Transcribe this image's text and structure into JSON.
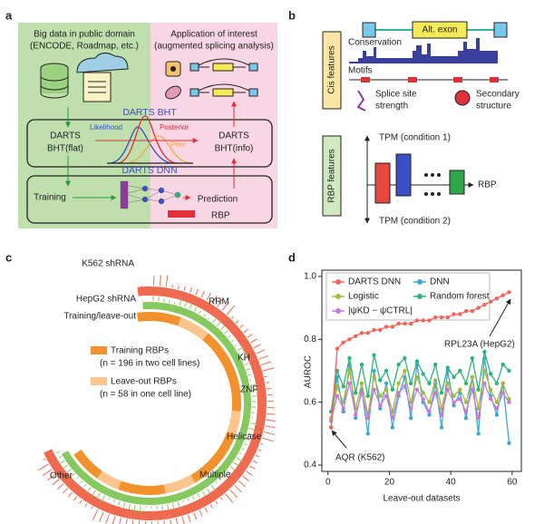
{
  "panel_a": {
    "letter": "a",
    "source_title": "Big data in public domain",
    "source_subtitle": "(ENCODE, Roadmap, etc.)",
    "app_title": "Application of interest",
    "app_subtitle": "(augmented splicing analysis)",
    "bht_label": "DARTS BHT",
    "likelihood": "Likelihood",
    "posterior": "Posterior",
    "prior": "Prior",
    "flat_1": "DARTS",
    "flat_2": "BHT(flat)",
    "info_1": "DARTS",
    "info_2": "BHT(info)",
    "dnn_label": "DARTS DNN",
    "training": "Training",
    "prediction": "Prediction",
    "rbp": "RBP"
  },
  "panel_b": {
    "letter": "b",
    "alt_exon": "Alt. exon",
    "conservation": "Conservation",
    "motifs": "Motifs",
    "cis_features": "Cis features",
    "splice_1": "Splice site",
    "splice_2": "strength",
    "secondary_1": "Secondary",
    "secondary_2": "structure",
    "rbp_features": "RBP features",
    "tpm_1": "TPM (condition 1)",
    "tpm_2": "TPM (condition 2)",
    "rbp": "RBP"
  },
  "panel_c": {
    "letter": "c",
    "k562": "K562 shRNA",
    "hepg2": "HepG2 shRNA",
    "train_leave": "Training/leave-out",
    "rrm": "RRM",
    "kh": "KH",
    "znf": "ZNF",
    "helicase": "Helicase",
    "multiple": "Multiple",
    "other": "Other",
    "train_rbps": "Training RBPs",
    "train_n": "(n = 196 in two cell lines)",
    "leave_rbps": "Leave-out RBPs",
    "leave_n": "(n = 58 in one cell line)"
  },
  "panel_d_letter": "d",
  "chart_data": {
    "type": "line",
    "x_label": "Leave-out datasets",
    "y_label": "AUROC",
    "xlim": [
      -2,
      63
    ],
    "xticks": [
      0,
      20,
      40,
      60
    ],
    "ylim": [
      0.38,
      1.02
    ],
    "yticks": [
      0.4,
      0.6,
      0.8,
      {
        "value": 1,
        "label": "1.0"
      }
    ],
    "x": [
      1,
      3,
      5,
      7,
      9,
      11,
      13,
      15,
      17,
      19,
      21,
      23,
      25,
      27,
      29,
      31,
      33,
      35,
      37,
      39,
      41,
      43,
      45,
      47,
      49,
      51,
      53,
      55,
      57,
      59
    ],
    "series": [
      {
        "name": "DARTS DNN",
        "color": "#f0655a",
        "values": [
          0.52,
          0.77,
          0.79,
          0.8,
          0.81,
          0.82,
          0.82,
          0.83,
          0.83,
          0.84,
          0.84,
          0.85,
          0.85,
          0.85,
          0.86,
          0.86,
          0.86,
          0.87,
          0.87,
          0.87,
          0.88,
          0.88,
          0.89,
          0.89,
          0.9,
          0.91,
          0.92,
          0.93,
          0.94,
          0.95
        ]
      },
      {
        "name": "DNN",
        "color": "#3fa6d6",
        "values": [
          0.52,
          0.68,
          0.57,
          0.72,
          0.55,
          0.64,
          0.5,
          0.7,
          0.58,
          0.66,
          0.52,
          0.62,
          0.68,
          0.55,
          0.72,
          0.6,
          0.56,
          0.66,
          0.52,
          0.7,
          0.59,
          0.63,
          0.55,
          0.68,
          0.5,
          0.74,
          0.62,
          0.56,
          0.66,
          0.47
        ]
      },
      {
        "name": "Logistic",
        "color": "#a4b83a",
        "values": [
          0.55,
          0.65,
          0.6,
          0.7,
          0.58,
          0.66,
          0.56,
          0.68,
          0.62,
          0.64,
          0.57,
          0.66,
          0.7,
          0.6,
          0.68,
          0.63,
          0.6,
          0.67,
          0.58,
          0.66,
          0.62,
          0.64,
          0.6,
          0.68,
          0.58,
          0.7,
          0.64,
          0.6,
          0.66,
          0.61
        ]
      },
      {
        "name": "Random forest",
        "color": "#2cb57a",
        "values": [
          0.57,
          0.7,
          0.65,
          0.74,
          0.63,
          0.72,
          0.62,
          0.75,
          0.67,
          0.7,
          0.64,
          0.72,
          0.74,
          0.66,
          0.73,
          0.69,
          0.66,
          0.72,
          0.63,
          0.71,
          0.68,
          0.7,
          0.66,
          0.74,
          0.64,
          0.76,
          0.69,
          0.66,
          0.72,
          0.7
        ]
      },
      {
        "name": "|ψKD − ψCTRL|",
        "color": "#c77ad8",
        "values": [
          0.54,
          0.62,
          0.58,
          0.66,
          0.56,
          0.63,
          0.55,
          0.64,
          0.59,
          0.62,
          0.55,
          0.63,
          0.65,
          0.58,
          0.64,
          0.61,
          0.57,
          0.63,
          0.56,
          0.64,
          0.6,
          0.61,
          0.57,
          0.64,
          0.55,
          0.66,
          0.61,
          0.58,
          0.63,
          0.6
        ]
      }
    ],
    "annotations": [
      "RPL23A (HepG2)",
      "AQR (K562)"
    ]
  }
}
